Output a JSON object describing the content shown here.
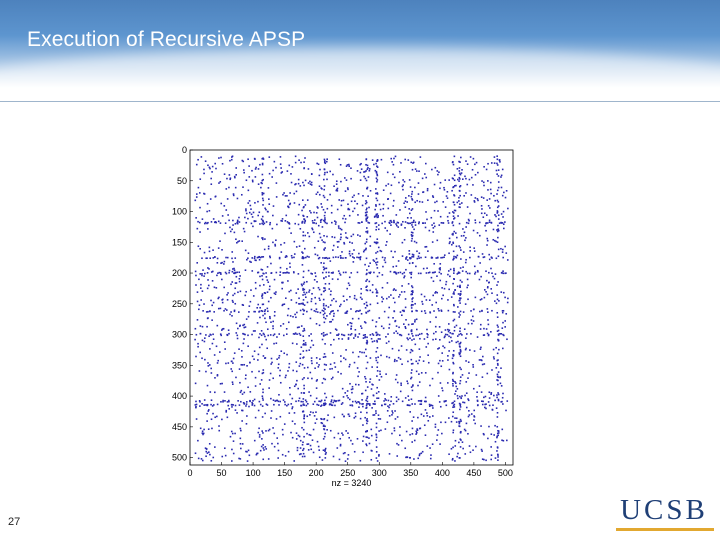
{
  "slide": {
    "title": "Execution of Recursive APSP",
    "number": "27",
    "logo_text": "UCSB",
    "colors": {
      "header": "#5d95cf",
      "title_text": "#ffffff",
      "logo": "#1f3f76",
      "logo_accent": "#e2a830"
    }
  },
  "chart_data": {
    "type": "scatter",
    "subtype": "sparsity-pattern",
    "title": "",
    "xlabel": "nz = 3240",
    "ylabel": "",
    "xlim": [
      0,
      512
    ],
    "ylim": [
      0,
      512
    ],
    "y_inverted": true,
    "x_ticks": [
      "0",
      "50",
      "100",
      "150",
      "200",
      "250",
      "300",
      "350",
      "400",
      "450",
      "500"
    ],
    "y_ticks": [
      "0",
      "50",
      "100",
      "150",
      "200",
      "250",
      "300",
      "350",
      "400",
      "450",
      "500"
    ],
    "nz": 3240,
    "marker_color": "#2a2ab0",
    "grid": false,
    "dense_rows": [
      118,
      175,
      200,
      262,
      300,
      408,
      414
    ],
    "dense_cols": [
      115,
      180,
      213,
      280,
      296,
      352,
      418,
      428,
      488
    ]
  }
}
